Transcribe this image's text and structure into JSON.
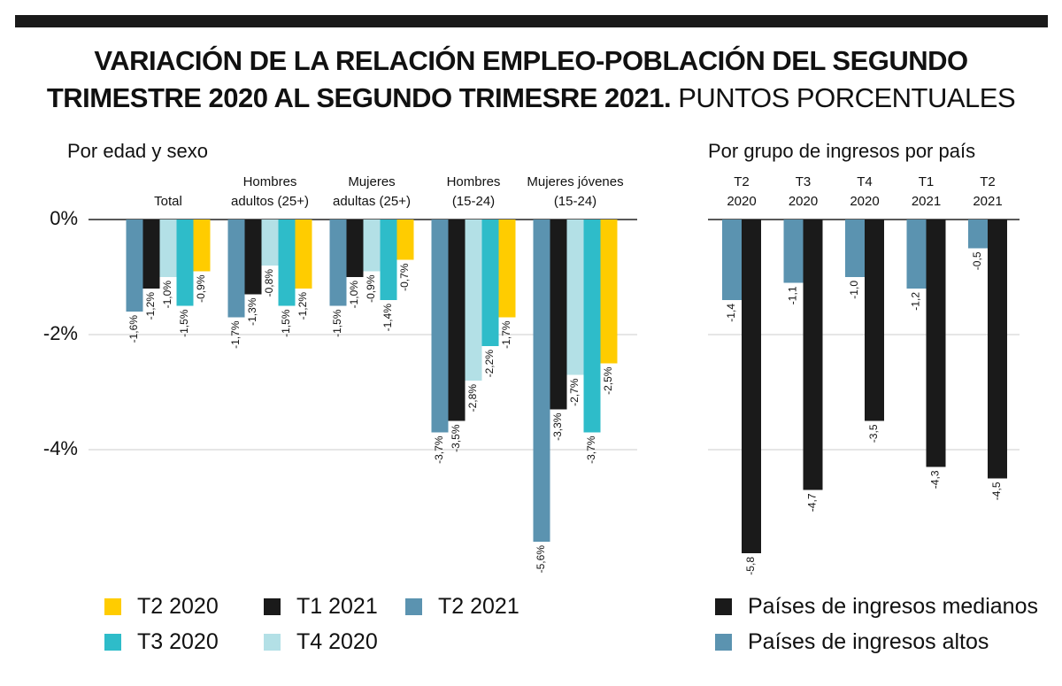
{
  "title": "VARIACIÓN DE LA RELACIÓN EMPLEO-POBLACIÓN DEL SEGUNDO TRIMESTRE 2020 AL SEGUNDO TRIMESRE 2021.",
  "subtitle": "PUNTOS PORCENTUALES",
  "chart_data": [
    {
      "type": "bar",
      "title": "Por edad y sexo",
      "categories": [
        "Total",
        "Hombres\nadultos (25+)",
        "Mujeres\nadultas (25+)",
        "Hombres\n(15-24)",
        "Mujeres jóvenes\n(15-24)"
      ],
      "series": [
        {
          "name": "T2 2021",
          "color": "#5b93b0",
          "values": [
            -1.6,
            -1.7,
            -1.5,
            -3.7,
            -5.6
          ],
          "value_labels": [
            "-1,6%",
            "-1,7%",
            "-1,5%",
            "-3,7%",
            "-5,6%"
          ]
        },
        {
          "name": "T1 2021",
          "color": "#1a1a1a",
          "values": [
            -1.2,
            -1.3,
            -1.0,
            -3.5,
            -3.3
          ],
          "value_labels": [
            "-1,2%",
            "-1,3%",
            "-1,0%",
            "-3,5%",
            "-3,3%"
          ]
        },
        {
          "name": "T4 2020",
          "color": "#b3e0e6",
          "values": [
            -1.0,
            -0.8,
            -0.9,
            -2.8,
            -2.7
          ],
          "value_labels": [
            "-1,0%",
            "-0,8%",
            "-0,9%",
            "-2,8%",
            "-2,7%"
          ]
        },
        {
          "name": "T3 2020",
          "color": "#2ebcc9",
          "values": [
            -1.5,
            -1.5,
            -1.4,
            -2.2,
            -3.7
          ],
          "value_labels": [
            "-1,5%",
            "-1,5%",
            "-1,4%",
            "-2,2%",
            "-3,7%"
          ]
        },
        {
          "name": "T2 2020",
          "color": "#ffcc00",
          "values": [
            -0.9,
            -1.2,
            -0.7,
            -1.7,
            -2.5
          ],
          "value_labels": [
            "-0,9%",
            "-1,2%",
            "-0,7%",
            "-1,7%",
            "-2,5%"
          ]
        }
      ],
      "ylim": [
        -6,
        0
      ],
      "yticks": [
        {
          "value": 0,
          "label": "0%"
        },
        {
          "value": -2,
          "label": "-2%"
        },
        {
          "value": -4,
          "label": "-4%"
        }
      ],
      "grid": true
    },
    {
      "type": "bar",
      "title": "Por grupo de ingresos por país",
      "categories": [
        "T2\n2020",
        "T3\n2020",
        "T4\n2020",
        "T1\n2021",
        "T2\n2021"
      ],
      "series": [
        {
          "name": "Países de ingresos altos",
          "color": "#5b93b0",
          "values": [
            -1.4,
            -1.1,
            -1.0,
            -1.2,
            -0.5
          ],
          "value_labels": [
            "-1,4",
            "-1,1",
            "-1,0",
            "-1,2",
            "-0,5"
          ]
        },
        {
          "name": "Países de ingresos medianos",
          "color": "#1a1a1a",
          "values": [
            -5.8,
            -4.7,
            -3.5,
            -4.3,
            -4.5
          ],
          "value_labels": [
            "-5,8",
            "-4,7",
            "-3,5",
            "-4,3",
            "-4,5"
          ]
        }
      ],
      "ylim": [
        -6,
        0
      ],
      "yticks": [
        0,
        -2,
        -4
      ],
      "grid": true
    }
  ]
}
